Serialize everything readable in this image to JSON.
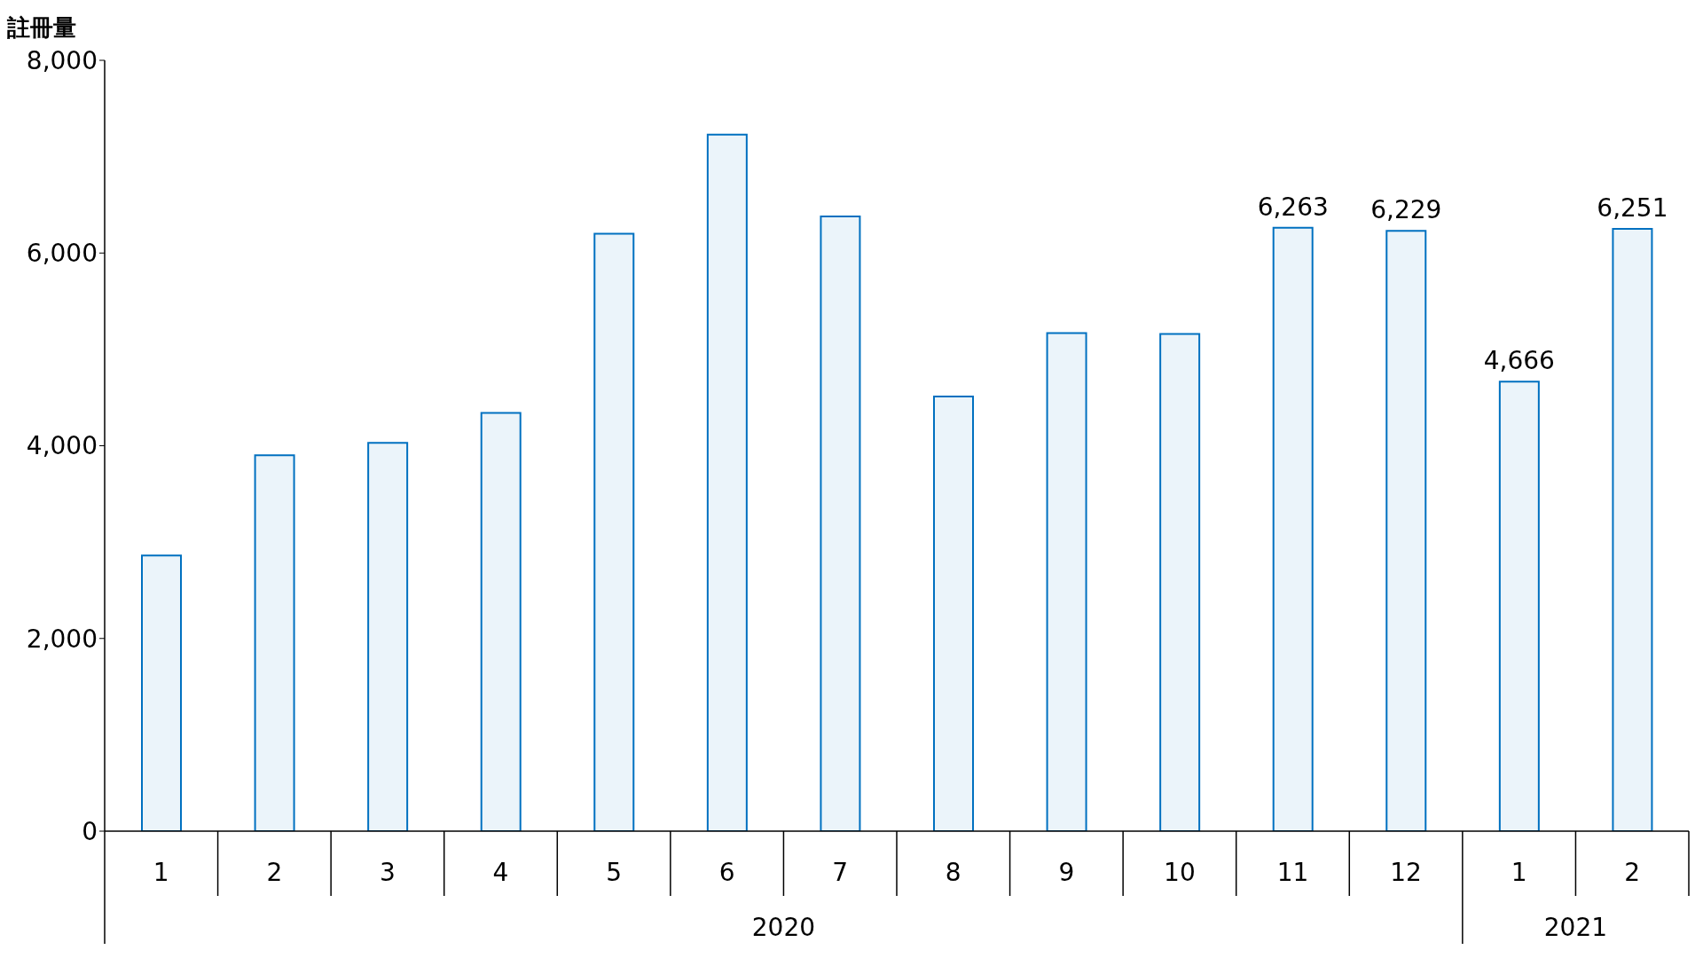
{
  "chart_data": {
    "type": "bar",
    "ylabel": "註冊量",
    "categories": [
      "1",
      "2",
      "3",
      "4",
      "5",
      "6",
      "7",
      "8",
      "9",
      "10",
      "11",
      "12",
      "1",
      "2"
    ],
    "values": [
      2860,
      3900,
      4030,
      4340,
      6200,
      7230,
      6380,
      4510,
      5170,
      5160,
      6263,
      6229,
      4666,
      6251
    ],
    "value_labels": [
      null,
      null,
      null,
      null,
      null,
      null,
      null,
      null,
      null,
      null,
      "6,263",
      "6,229",
      "4,666",
      "6,251"
    ],
    "color": "#0070c0",
    "ylim": [
      0,
      8000
    ],
    "yticks": [
      {
        "value": 0,
        "label": "0"
      },
      {
        "value": 2000,
        "label": "2,000"
      },
      {
        "value": 4000,
        "label": "4,000"
      },
      {
        "value": 6000,
        "label": "6,000"
      },
      {
        "value": 8000,
        "label": "8,000"
      }
    ],
    "grid": false,
    "legend": false,
    "annotations": [
      "2020",
      "2021"
    ]
  }
}
